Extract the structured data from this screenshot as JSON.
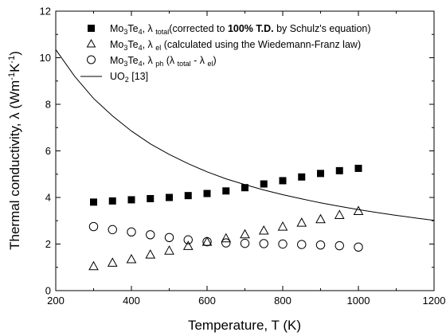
{
  "chart_data": {
    "type": "scatter",
    "xlabel": "Temperature, T (K)",
    "xlim": [
      200,
      1200
    ],
    "x_ticks": [
      200,
      400,
      600,
      800,
      1000,
      1200
    ],
    "ylim": [
      0,
      12
    ],
    "y_ticks": [
      0,
      2,
      4,
      6,
      8,
      10,
      12
    ],
    "grid": false,
    "legend_position": "top-right",
    "series": [
      {
        "name": "Mo3Te4, λ total (corrected to 100% T.D. by Schulz's equation)",
        "marker": "filled-square",
        "x": [
          300,
          350,
          400,
          450,
          500,
          550,
          600,
          650,
          700,
          750,
          800,
          850,
          900,
          950,
          1000
        ],
        "y": [
          3.8,
          3.85,
          3.9,
          3.95,
          4.0,
          4.08,
          4.17,
          4.28,
          4.42,
          4.58,
          4.72,
          4.88,
          5.03,
          5.15,
          5.25
        ]
      },
      {
        "name": "Mo3Te4, λ el (calculated using the Wiedemann-Franz law)",
        "marker": "open-triangle",
        "x": [
          300,
          350,
          400,
          450,
          500,
          550,
          600,
          650,
          700,
          750,
          800,
          850,
          900,
          950,
          1000
        ],
        "y": [
          1.05,
          1.2,
          1.35,
          1.55,
          1.72,
          1.92,
          2.1,
          2.25,
          2.42,
          2.58,
          2.75,
          2.92,
          3.07,
          3.25,
          3.42
        ]
      },
      {
        "name": "Mo3Te4, λ ph (λ total - λ el)",
        "marker": "open-circle",
        "x": [
          300,
          350,
          400,
          450,
          500,
          550,
          600,
          650,
          700,
          750,
          800,
          850,
          900,
          950,
          1000
        ],
        "y": [
          2.75,
          2.62,
          2.52,
          2.4,
          2.28,
          2.18,
          2.1,
          2.05,
          2.03,
          2.02,
          2.0,
          1.98,
          1.96,
          1.93,
          1.87
        ]
      },
      {
        "name": "UO2 [13]",
        "marker": "line",
        "x": [
          200,
          250,
          300,
          350,
          400,
          450,
          500,
          550,
          600,
          650,
          700,
          750,
          800,
          850,
          900,
          950,
          1000,
          1050,
          1100,
          1150,
          1200
        ],
        "y": [
          10.35,
          9.2,
          8.25,
          7.5,
          6.85,
          6.3,
          5.85,
          5.45,
          5.1,
          4.8,
          4.55,
          4.32,
          4.12,
          3.94,
          3.77,
          3.62,
          3.48,
          3.35,
          3.23,
          3.12,
          3.02
        ]
      }
    ]
  }
}
